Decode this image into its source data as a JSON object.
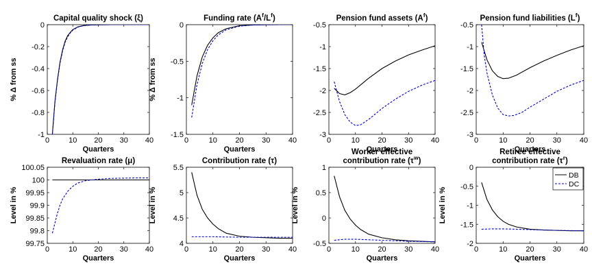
{
  "chart_data": [
    {
      "type": "line",
      "title": "Capital quality shock (ξ)",
      "xlabel": "Quarters",
      "ylabel": "% Δ from ss",
      "xlim": [
        0,
        40
      ],
      "ylim": [
        -1,
        0
      ],
      "xticks": [
        "0",
        "10",
        "20",
        "30",
        "40"
      ],
      "yticks": [
        "-1",
        "-0.8",
        "-0.6",
        "-0.4",
        "-0.2",
        "0"
      ],
      "series": [
        {
          "name": "DB",
          "x": [
            2,
            3,
            4,
            5,
            6,
            7,
            8,
            9,
            10,
            12,
            14,
            16,
            18,
            20,
            25,
            30,
            35,
            40
          ],
          "y": [
            -1.0,
            -0.7,
            -0.5,
            -0.34,
            -0.23,
            -0.15,
            -0.1,
            -0.07,
            -0.045,
            -0.02,
            -0.009,
            -0.004,
            -0.002,
            -0.001,
            0,
            0,
            0,
            0
          ]
        },
        {
          "name": "DC",
          "x": [
            2,
            3,
            4,
            5,
            6,
            7,
            8,
            9,
            10,
            12,
            14,
            16,
            18,
            20,
            25,
            30,
            35,
            40
          ],
          "y": [
            -1.0,
            -0.71,
            -0.51,
            -0.35,
            -0.24,
            -0.16,
            -0.11,
            -0.075,
            -0.05,
            -0.022,
            -0.01,
            -0.005,
            -0.002,
            -0.001,
            0,
            0,
            0,
            0
          ]
        }
      ]
    },
    {
      "type": "line",
      "title": "Funding rate (A^f/L^f)",
      "xlabel": "Quarters",
      "ylabel": "% Δ from ss",
      "xlim": [
        0,
        40
      ],
      "ylim": [
        -1.5,
        0
      ],
      "xticks": [
        "0",
        "10",
        "20",
        "30",
        "40"
      ],
      "yticks": [
        "-1.5",
        "-1",
        "-0.5",
        "0"
      ],
      "series": [
        {
          "name": "DB",
          "x": [
            2,
            4,
            6,
            8,
            10,
            12,
            15,
            20,
            25,
            30,
            35,
            40
          ],
          "y": [
            -1.1,
            -0.7,
            -0.44,
            -0.28,
            -0.18,
            -0.11,
            -0.055,
            -0.015,
            -0.004,
            -0.001,
            0,
            0
          ]
        },
        {
          "name": "DC",
          "x": [
            2,
            4,
            6,
            8,
            10,
            12,
            15,
            20,
            25,
            30,
            35,
            40
          ],
          "y": [
            -1.27,
            -0.82,
            -0.53,
            -0.34,
            -0.22,
            -0.14,
            -0.07,
            -0.02,
            -0.005,
            -0.001,
            0,
            0
          ]
        }
      ]
    },
    {
      "type": "line",
      "title": "Pension fund assets (A^f)",
      "xlabel": "Quarters",
      "ylabel": "",
      "xlim": [
        0,
        40
      ],
      "ylim": [
        -3,
        -0.5
      ],
      "xticks": [
        "0",
        "10",
        "20",
        "30",
        "40"
      ],
      "yticks": [
        "-3",
        "-2.5",
        "-2",
        "-1.5",
        "-1",
        "-0.5"
      ],
      "series": [
        {
          "name": "DB",
          "x": [
            2,
            4,
            6,
            8,
            10,
            15,
            20,
            25,
            30,
            35,
            40
          ],
          "y": [
            -1.95,
            -2.07,
            -2.1,
            -2.05,
            -1.97,
            -1.72,
            -1.5,
            -1.33,
            -1.19,
            -1.08,
            -0.98
          ]
        },
        {
          "name": "DC",
          "x": [
            2,
            4,
            6,
            8,
            10,
            12,
            15,
            20,
            25,
            30,
            35,
            40
          ],
          "y": [
            -1.8,
            -2.25,
            -2.55,
            -2.72,
            -2.8,
            -2.78,
            -2.66,
            -2.41,
            -2.2,
            -2.02,
            -1.88,
            -1.77
          ]
        }
      ]
    },
    {
      "type": "line",
      "title": "Pension fund liabilities (L^f)",
      "xlabel": "Quarters",
      "ylabel": "",
      "xlim": [
        0,
        40
      ],
      "ylim": [
        -3,
        -0.5
      ],
      "xticks": [
        "0",
        "10",
        "20",
        "30",
        "40"
      ],
      "yticks": [
        "-3",
        "-2.5",
        "-2",
        "-1.5",
        "-1",
        "-0.5"
      ],
      "series": [
        {
          "name": "DB",
          "x": [
            2,
            4,
            6,
            8,
            10,
            12,
            15,
            20,
            25,
            30,
            35,
            40
          ],
          "y": [
            -0.9,
            -1.3,
            -1.55,
            -1.68,
            -1.73,
            -1.72,
            -1.65,
            -1.48,
            -1.33,
            -1.2,
            -1.08,
            -0.98
          ]
        },
        {
          "name": "DC",
          "x": [
            2,
            3,
            4,
            6,
            8,
            10,
            12,
            14,
            17,
            20,
            25,
            30,
            35,
            40
          ],
          "y": [
            -0.5,
            -1.2,
            -1.6,
            -2.1,
            -2.4,
            -2.55,
            -2.58,
            -2.57,
            -2.5,
            -2.38,
            -2.2,
            -2.02,
            -1.88,
            -1.77
          ]
        }
      ]
    },
    {
      "type": "line",
      "title": "Revaluation rate (μ)",
      "xlabel": "Quarters",
      "ylabel": "Level in %",
      "xlim": [
        0,
        40
      ],
      "ylim": [
        99.75,
        100.05
      ],
      "xticks": [
        "0",
        "10",
        "20",
        "30",
        "40"
      ],
      "yticks": [
        "99.75",
        "99.8",
        "99.85",
        "99.9",
        "99.95",
        "100",
        "100.05"
      ],
      "series": [
        {
          "name": "DB",
          "x": [
            2,
            40
          ],
          "y": [
            100,
            100
          ]
        },
        {
          "name": "DC",
          "x": [
            2,
            3,
            4,
            5,
            6,
            8,
            10,
            12,
            15,
            20,
            25,
            30,
            35,
            40
          ],
          "y": [
            99.79,
            99.83,
            99.87,
            99.9,
            99.925,
            99.955,
            99.975,
            99.988,
            99.997,
            100.003,
            100.006,
            100.007,
            100.008,
            100.008
          ]
        }
      ]
    },
    {
      "type": "line",
      "title": "Contribution rate (τ)",
      "xlabel": "Quarters",
      "ylabel": "Level in %",
      "xlim": [
        0,
        40
      ],
      "ylim": [
        4,
        5.5
      ],
      "xticks": [
        "0",
        "10",
        "20",
        "30",
        "40"
      ],
      "yticks": [
        "4",
        "4.5",
        "5",
        "5.5"
      ],
      "series": [
        {
          "name": "DB",
          "x": [
            2,
            4,
            6,
            8,
            10,
            12,
            15,
            20,
            25,
            30,
            35,
            40
          ],
          "y": [
            5.4,
            4.95,
            4.67,
            4.5,
            4.38,
            4.29,
            4.2,
            4.14,
            4.12,
            4.11,
            4.1,
            4.1
          ]
        },
        {
          "name": "DC",
          "x": [
            2,
            10,
            20,
            30,
            40
          ],
          "y": [
            4.13,
            4.13,
            4.12,
            4.12,
            4.12
          ]
        }
      ]
    },
    {
      "type": "line",
      "title": "Worker effective contribution rate (τ^w)",
      "xlabel": "Quarters",
      "ylabel": "Level in %",
      "xlim": [
        0,
        40
      ],
      "ylim": [
        -0.5,
        1
      ],
      "xticks": [
        "0",
        "10",
        "20",
        "30",
        "40"
      ],
      "yticks": [
        "-0.5",
        "0",
        "0.5",
        "1"
      ],
      "series": [
        {
          "name": "DB",
          "x": [
            2,
            4,
            6,
            8,
            10,
            12,
            15,
            20,
            25,
            30,
            35,
            40
          ],
          "y": [
            0.83,
            0.42,
            0.15,
            -0.02,
            -0.14,
            -0.23,
            -0.32,
            -0.39,
            -0.43,
            -0.45,
            -0.46,
            -0.47
          ]
        },
        {
          "name": "DC",
          "x": [
            2,
            6,
            10,
            15,
            20,
            30,
            40
          ],
          "y": [
            -0.44,
            -0.42,
            -0.42,
            -0.43,
            -0.44,
            -0.46,
            -0.47
          ]
        }
      ]
    },
    {
      "type": "line",
      "title": "Retiree effective contribution rate (τ^r)",
      "xlabel": "Quarters",
      "ylabel": "Level in %",
      "xlim": [
        0,
        40
      ],
      "ylim": [
        -2,
        0
      ],
      "xticks": [
        "0",
        "10",
        "20",
        "30",
        "40"
      ],
      "yticks": [
        "-2",
        "-1.5",
        "-1",
        "-0.5",
        "0"
      ],
      "series": [
        {
          "name": "DB",
          "x": [
            2,
            4,
            6,
            8,
            10,
            12,
            15,
            20,
            25,
            30,
            35,
            40
          ],
          "y": [
            -0.4,
            -0.85,
            -1.12,
            -1.3,
            -1.42,
            -1.5,
            -1.57,
            -1.63,
            -1.65,
            -1.66,
            -1.67,
            -1.67
          ]
        },
        {
          "name": "DC",
          "x": [
            2,
            6,
            10,
            15,
            20,
            30,
            40
          ],
          "y": [
            -1.63,
            -1.62,
            -1.62,
            -1.63,
            -1.64,
            -1.66,
            -1.67
          ]
        }
      ],
      "legend": {
        "entries": [
          "DB",
          "DC"
        ],
        "placement": "top-right"
      }
    }
  ],
  "colors": {
    "DB": "#000000",
    "DC": "#0000cc"
  }
}
